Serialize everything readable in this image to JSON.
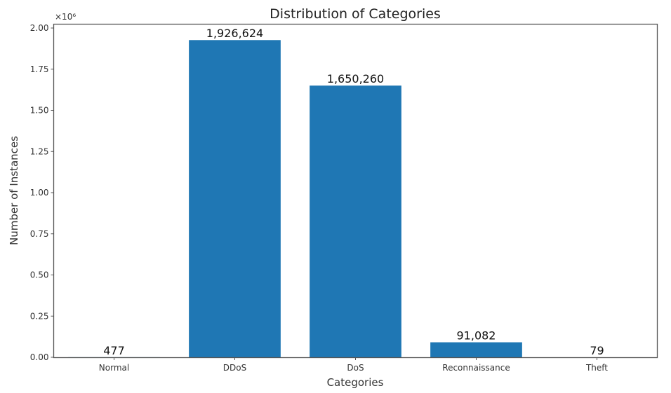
{
  "chart_data": {
    "type": "bar",
    "title": "Distribution of Categories",
    "xlabel": "Categories",
    "ylabel": "Number of Instances",
    "categories": [
      "Normal",
      "DDoS",
      "DoS",
      "Reconnaissance",
      "Theft"
    ],
    "values": [
      477,
      1926624,
      1650260,
      91082,
      79
    ],
    "value_labels": [
      "477",
      "1,926,624",
      "1,650,260",
      "91,082",
      "79"
    ],
    "ylim": [
      0,
      2000000
    ],
    "y_ticks": [
      0,
      250000,
      500000,
      750000,
      1000000,
      1250000,
      1500000,
      1750000,
      2000000
    ],
    "y_tick_labels": [
      "0.00",
      "0.25",
      "0.50",
      "0.75",
      "1.00",
      "1.25",
      "1.50",
      "1.75",
      "2.00"
    ],
    "y_offset_text": "×10⁶",
    "grid": false,
    "legend": null,
    "bar_color": "#1f77b4"
  }
}
